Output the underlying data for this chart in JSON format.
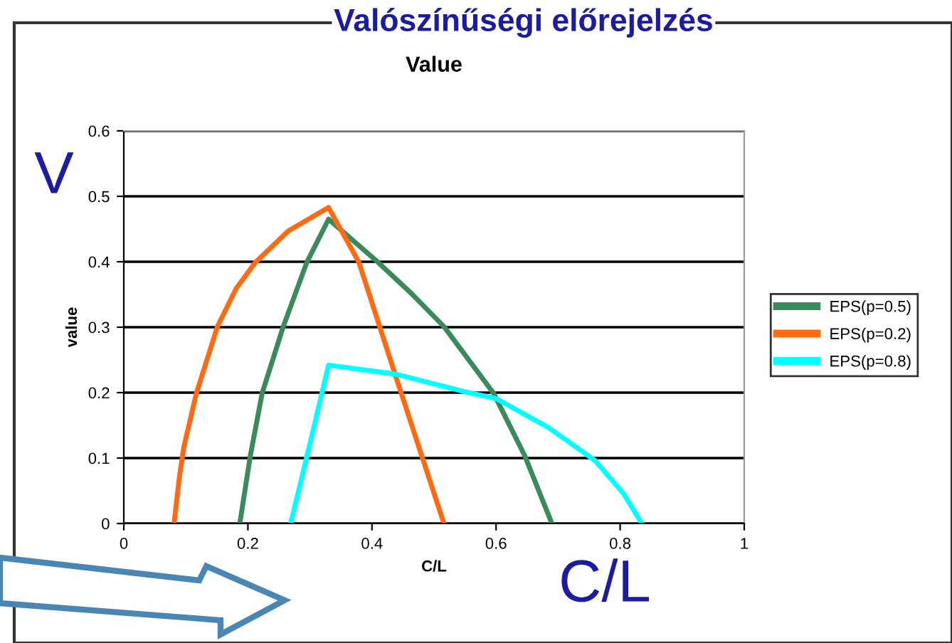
{
  "chart_data": {
    "type": "line",
    "title": "Value",
    "xlabel": "C/L",
    "ylabel": "value",
    "annotations": [
      "Valószínűségi előrejelzés",
      "V",
      "C/L"
    ],
    "xlim": [
      0,
      1
    ],
    "xticks": [
      0,
      0.2,
      0.4,
      0.6,
      0.8,
      1
    ],
    "ylim": [
      0,
      0.6
    ],
    "yticks": [
      0,
      0.1,
      0.2,
      0.3,
      0.4,
      0.5,
      0.6
    ],
    "grid": "y",
    "legend": "right",
    "marker": "none",
    "line_style": "solid",
    "series": [
      {
        "name": "EPS(p=0.5)",
        "color": "#3a8a5c",
        "x": [
          0.187,
          0.204,
          0.223,
          0.257,
          0.295,
          0.33,
          0.41,
          0.463,
          0.516,
          0.596,
          0.646,
          0.69
        ],
        "values": [
          0,
          0.104,
          0.199,
          0.301,
          0.399,
          0.465,
          0.399,
          0.352,
          0.301,
          0.199,
          0.104,
          0
        ]
      },
      {
        "name": "EPS(p=0.2)",
        "color": "#ff6a13",
        "x": [
          0.081,
          0.09,
          0.097,
          0.117,
          0.151,
          0.181,
          0.212,
          0.265,
          0.33,
          0.379,
          0.44,
          0.516
        ],
        "values": [
          0,
          0.074,
          0.118,
          0.199,
          0.301,
          0.359,
          0.399,
          0.447,
          0.483,
          0.399,
          0.22,
          0
        ]
      },
      {
        "name": "EPS(p=0.8)",
        "color": "#00ffff",
        "x": [
          0.269,
          0.299,
          0.33,
          0.44,
          0.547,
          0.6,
          0.684,
          0.76,
          0.806,
          0.835
        ],
        "values": [
          0,
          0.118,
          0.242,
          0.228,
          0.202,
          0.191,
          0.147,
          0.096,
          0.045,
          0
        ]
      }
    ]
  }
}
